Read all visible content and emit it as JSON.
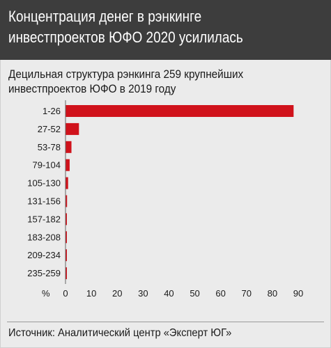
{
  "header": {
    "title_line1": "Концентрация денег в рэнкинге",
    "title_line2": "инвестпроектов ЮФО 2020 усилилась"
  },
  "subtitle_line1": "Децильная структура рэнкинга 259 крупнейших",
  "subtitle_line2": "инвестпроектов ЮФО в 2019 году",
  "source": "Источник: Аналитический центр «Эксперт ЮГ»",
  "colors": {
    "bar": "#d0121b",
    "header_bg": "#3d3d3d",
    "panel_bg": "#ebebeb"
  },
  "chart_data": {
    "type": "bar",
    "orientation": "horizontal",
    "categories": [
      "1-26",
      "27-52",
      "53-78",
      "79-104",
      "105-130",
      "131-156",
      "157-182",
      "183-208",
      "209-234",
      "235-259"
    ],
    "values": [
      88.2,
      5.2,
      2.3,
      1.6,
      1.0,
      0.6,
      0.5,
      0.4,
      0.3,
      0.2
    ],
    "xlabel": "%",
    "xlim": [
      0,
      90
    ],
    "xticks": [
      0,
      10,
      20,
      30,
      40,
      50,
      60,
      70,
      80,
      90
    ],
    "grid": false
  }
}
